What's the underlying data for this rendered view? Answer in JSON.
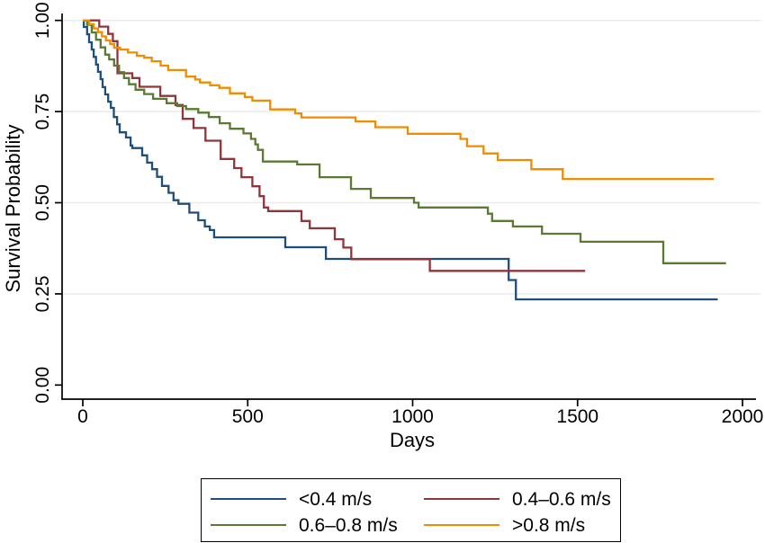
{
  "figure": {
    "title": "",
    "background": "#ffffff",
    "axis_color": "#000000",
    "grid_color": "#ebebeb"
  },
  "chart_data": {
    "type": "line",
    "subtype": "kaplan-meier-step",
    "title": "",
    "xlabel": "Days",
    "ylabel": "Survival Probability",
    "xlim": [
      0,
      2000
    ],
    "ylim": [
      0.0,
      1.0
    ],
    "grid": "horizontal-only",
    "legend_position": "bottom-center",
    "x_ticks": [
      {
        "value": 0,
        "label": "0"
      },
      {
        "value": 500,
        "label": "500"
      },
      {
        "value": 1000,
        "label": "1000"
      },
      {
        "value": 1500,
        "label": "1500"
      },
      {
        "value": 2000,
        "label": "2000"
      }
    ],
    "y_ticks": [
      {
        "value": 0.0,
        "label": "0.00"
      },
      {
        "value": 0.25,
        "label": "0.25"
      },
      {
        "value": 0.5,
        "label": "0.50"
      },
      {
        "value": 0.75,
        "label": "0.75"
      },
      {
        "value": 1.0,
        "label": "1.00"
      }
    ],
    "series": [
      {
        "name": "<0.4 m/s",
        "color": "#1f4e79",
        "points": [
          [
            0,
            1.0
          ],
          [
            3,
            0.982
          ],
          [
            13,
            0.962
          ],
          [
            19,
            0.94
          ],
          [
            27,
            0.92
          ],
          [
            33,
            0.9
          ],
          [
            40,
            0.879
          ],
          [
            46,
            0.859
          ],
          [
            54,
            0.839
          ],
          [
            60,
            0.817
          ],
          [
            68,
            0.797
          ],
          [
            77,
            0.777
          ],
          [
            85,
            0.76
          ],
          [
            94,
            0.735
          ],
          [
            104,
            0.715
          ],
          [
            112,
            0.693
          ],
          [
            131,
            0.679
          ],
          [
            145,
            0.657
          ],
          [
            150,
            0.65
          ],
          [
            180,
            0.63
          ],
          [
            195,
            0.61
          ],
          [
            210,
            0.592
          ],
          [
            225,
            0.571
          ],
          [
            240,
            0.546
          ],
          [
            260,
            0.527
          ],
          [
            275,
            0.507
          ],
          [
            290,
            0.497
          ],
          [
            323,
            0.473
          ],
          [
            350,
            0.452
          ],
          [
            370,
            0.435
          ],
          [
            385,
            0.425
          ],
          [
            398,
            0.405
          ],
          [
            614,
            0.378
          ],
          [
            737,
            0.346
          ],
          [
            1291,
            0.288
          ],
          [
            1313,
            0.235
          ],
          [
            1925,
            0.235
          ]
        ]
      },
      {
        "name": "0.4–0.6 m/s",
        "color": "#90353b",
        "points": [
          [
            0,
            1.0
          ],
          [
            50,
            0.983
          ],
          [
            77,
            0.963
          ],
          [
            91,
            0.943
          ],
          [
            105,
            0.855
          ],
          [
            150,
            0.842
          ],
          [
            172,
            0.818
          ],
          [
            235,
            0.793
          ],
          [
            281,
            0.768
          ],
          [
            303,
            0.73
          ],
          [
            336,
            0.705
          ],
          [
            372,
            0.67
          ],
          [
            418,
            0.62
          ],
          [
            459,
            0.595
          ],
          [
            481,
            0.57
          ],
          [
            514,
            0.545
          ],
          [
            536,
            0.518
          ],
          [
            549,
            0.487
          ],
          [
            562,
            0.477
          ],
          [
            663,
            0.45
          ],
          [
            688,
            0.43
          ],
          [
            764,
            0.4
          ],
          [
            790,
            0.377
          ],
          [
            814,
            0.345
          ],
          [
            1052,
            0.313
          ],
          [
            1523,
            0.313
          ]
        ]
      },
      {
        "name": "0.6–0.8 m/s",
        "color": "#5a7a32",
        "points": [
          [
            0,
            1.0
          ],
          [
            13,
            0.988
          ],
          [
            27,
            0.967
          ],
          [
            40,
            0.947
          ],
          [
            54,
            0.926
          ],
          [
            68,
            0.906
          ],
          [
            80,
            0.893
          ],
          [
            95,
            0.876
          ],
          [
            110,
            0.858
          ],
          [
            125,
            0.842
          ],
          [
            140,
            0.825
          ],
          [
            160,
            0.81
          ],
          [
            186,
            0.798
          ],
          [
            213,
            0.785
          ],
          [
            254,
            0.773
          ],
          [
            286,
            0.765
          ],
          [
            313,
            0.757
          ],
          [
            350,
            0.747
          ],
          [
            382,
            0.735
          ],
          [
            415,
            0.718
          ],
          [
            446,
            0.703
          ],
          [
            487,
            0.69
          ],
          [
            510,
            0.675
          ],
          [
            523,
            0.66
          ],
          [
            531,
            0.645
          ],
          [
            546,
            0.613
          ],
          [
            650,
            0.605
          ],
          [
            718,
            0.57
          ],
          [
            813,
            0.538
          ],
          [
            873,
            0.513
          ],
          [
            1004,
            0.5
          ],
          [
            1018,
            0.487
          ],
          [
            1228,
            0.47
          ],
          [
            1241,
            0.45
          ],
          [
            1304,
            0.435
          ],
          [
            1392,
            0.415
          ],
          [
            1509,
            0.393
          ],
          [
            1760,
            0.334
          ],
          [
            1950,
            0.334
          ]
        ]
      },
      {
        "name": ">0.8 m/s",
        "color": "#ef8c00",
        "points": [
          [
            0,
            1.0
          ],
          [
            19,
            0.99
          ],
          [
            33,
            0.978
          ],
          [
            46,
            0.968
          ],
          [
            58,
            0.956
          ],
          [
            70,
            0.945
          ],
          [
            83,
            0.935
          ],
          [
            95,
            0.925
          ],
          [
            113,
            0.92
          ],
          [
            137,
            0.912
          ],
          [
            164,
            0.903
          ],
          [
            186,
            0.898
          ],
          [
            209,
            0.888
          ],
          [
            236,
            0.876
          ],
          [
            259,
            0.864
          ],
          [
            313,
            0.846
          ],
          [
            341,
            0.838
          ],
          [
            355,
            0.83
          ],
          [
            386,
            0.822
          ],
          [
            414,
            0.815
          ],
          [
            446,
            0.8
          ],
          [
            491,
            0.79
          ],
          [
            514,
            0.78
          ],
          [
            568,
            0.756
          ],
          [
            644,
            0.745
          ],
          [
            663,
            0.734
          ],
          [
            827,
            0.723
          ],
          [
            887,
            0.707
          ],
          [
            985,
            0.689
          ],
          [
            1145,
            0.675
          ],
          [
            1165,
            0.655
          ],
          [
            1215,
            0.635
          ],
          [
            1258,
            0.617
          ],
          [
            1360,
            0.592
          ],
          [
            1455,
            0.565
          ],
          [
            1913,
            0.565
          ]
        ]
      }
    ]
  }
}
